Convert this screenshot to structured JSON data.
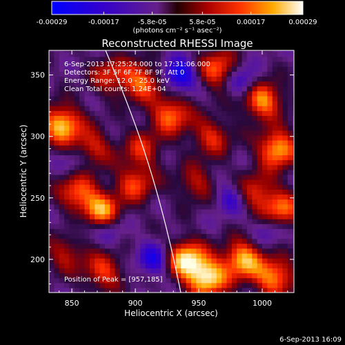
{
  "chart_data": {
    "type": "heatmap",
    "title": "Reconstructed RHESSI Image",
    "xlabel": "Heliocentric X (arcsec)",
    "ylabel": "Heliocentric Y (arcsec)",
    "xlim": [
      832,
      1025
    ],
    "ylim": [
      173,
      370
    ],
    "x_ticks": [
      "850",
      "900",
      "950",
      "1000"
    ],
    "y_ticks": [
      "200",
      "250",
      "300",
      "350"
    ],
    "x_tick_values": [
      850,
      900,
      950,
      1000
    ],
    "y_tick_values": [
      200,
      250,
      300,
      350
    ],
    "colorbar": {
      "ticks": [
        "-0.00029",
        "-0.00017",
        "-5.8e-05",
        "5.8e-05",
        "0.00017",
        "0.00029"
      ],
      "unit_label": "(photons cm⁻² s⁻¹ asec⁻²)",
      "range": [
        -0.00029,
        0.00029
      ]
    },
    "annotations": [
      "6-Sep-2013 17:25:24.000  to  17:31:06.000",
      "Detectors: 3F 5F 6F 7F 8F 9F, Att 0",
      "Energy Range: 12.0 - 25.0 keV",
      "Clean     Total counts: 1.24E+04"
    ],
    "peak_label": "Position of Peak = [957,185]",
    "peak_position": [
      957,
      185
    ],
    "timestamp": "6-Sep-2013 16:09",
    "hotspots": [
      {
        "x": 842,
        "y": 310,
        "v": 0.95
      },
      {
        "x": 865,
        "y": 290,
        "v": 0.6
      },
      {
        "x": 855,
        "y": 255,
        "v": 0.7
      },
      {
        "x": 873,
        "y": 237,
        "v": 0.95
      },
      {
        "x": 880,
        "y": 350,
        "v": 0.5
      },
      {
        "x": 905,
        "y": 345,
        "v": 0.7
      },
      {
        "x": 928,
        "y": 318,
        "v": 0.75
      },
      {
        "x": 905,
        "y": 290,
        "v": 0.5
      },
      {
        "x": 900,
        "y": 262,
        "v": 0.6
      },
      {
        "x": 965,
        "y": 355,
        "v": 0.7
      },
      {
        "x": 960,
        "y": 300,
        "v": 0.55
      },
      {
        "x": 1000,
        "y": 330,
        "v": 0.85
      },
      {
        "x": 1012,
        "y": 290,
        "v": 0.9
      },
      {
        "x": 995,
        "y": 255,
        "v": 0.55
      },
      {
        "x": 1015,
        "y": 240,
        "v": 0.7
      },
      {
        "x": 940,
        "y": 200,
        "v": 1.0
      },
      {
        "x": 957,
        "y": 185,
        "v": 1.0
      },
      {
        "x": 985,
        "y": 200,
        "v": 0.9
      },
      {
        "x": 1010,
        "y": 185,
        "v": 0.8
      },
      {
        "x": 845,
        "y": 205,
        "v": 0.45
      },
      {
        "x": 875,
        "y": 190,
        "v": 0.6
      },
      {
        "x": 948,
        "y": 262,
        "v": 0.45
      }
    ],
    "coldspots": [
      {
        "x": 935,
        "y": 350,
        "v": 0.9
      },
      {
        "x": 985,
        "y": 345,
        "v": 0.6
      },
      {
        "x": 880,
        "y": 225,
        "v": 0.5
      },
      {
        "x": 855,
        "y": 280,
        "v": 0.4
      },
      {
        "x": 975,
        "y": 250,
        "v": 0.5
      },
      {
        "x": 915,
        "y": 200,
        "v": 0.7
      },
      {
        "x": 860,
        "y": 230,
        "v": 0.35
      },
      {
        "x": 1005,
        "y": 225,
        "v": 0.4
      }
    ]
  }
}
